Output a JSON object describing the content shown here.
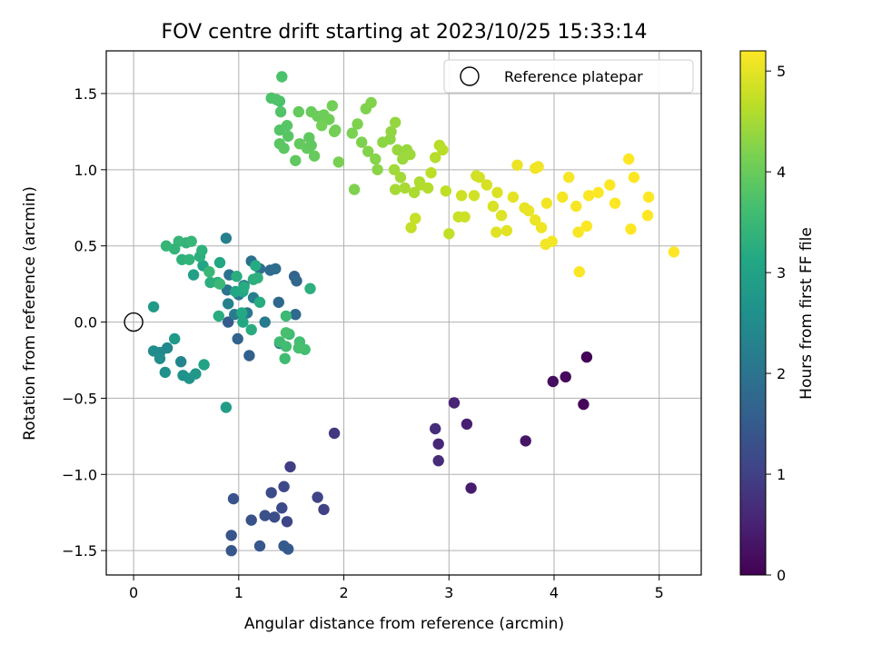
{
  "chart_data": {
    "type": "scatter",
    "title": "FOV centre drift starting at 2023/10/25 15:33:14",
    "xlabel": "Angular distance from reference (arcmin)",
    "ylabel": "Rotation from reference (arcmin)",
    "xlim": [
      -0.26,
      5.4
    ],
    "ylim": [
      -1.66,
      1.78
    ],
    "xticks": [
      0,
      1,
      2,
      3,
      4,
      5
    ],
    "xtick_labels": [
      "0",
      "1",
      "2",
      "3",
      "4",
      "5"
    ],
    "yticks": [
      -1.5,
      -1.0,
      -0.5,
      0.0,
      0.5,
      1.0,
      1.5
    ],
    "ytick_labels": [
      "−1.5",
      "−1.0",
      "−0.5",
      "0.0",
      "0.5",
      "1.0",
      "1.5"
    ],
    "grid": true,
    "legend": {
      "position": "top-right",
      "entries": [
        "Reference platepar"
      ]
    },
    "reference": {
      "x": 0,
      "y": 0,
      "label": "Reference platepar"
    },
    "colorbar": {
      "label": "Hours from first FF file",
      "range": [
        0,
        5.2
      ],
      "ticks": [
        0,
        1,
        2,
        3,
        4,
        5
      ],
      "tick_labels": [
        "0",
        "1",
        "2",
        "3",
        "4",
        "5"
      ],
      "colormap": "viridis"
    },
    "points": [
      [
        4.31,
        -0.23,
        0.05
      ],
      [
        4.28,
        -0.54,
        0.08
      ],
      [
        4.11,
        -0.36,
        0.12
      ],
      [
        3.99,
        -0.39,
        0.18
      ],
      [
        3.73,
        -0.78,
        0.3
      ],
      [
        3.21,
        -1.09,
        0.42
      ],
      [
        3.17,
        -0.67,
        0.48
      ],
      [
        3.05,
        -0.53,
        0.55
      ],
      [
        2.9,
        -0.8,
        0.6
      ],
      [
        2.9,
        -0.91,
        0.66
      ],
      [
        2.87,
        -0.7,
        0.72
      ],
      [
        1.91,
        -0.73,
        0.85
      ],
      [
        1.49,
        -0.95,
        0.95
      ],
      [
        1.81,
        -1.23,
        1.0
      ],
      [
        1.75,
        -1.15,
        1.05
      ],
      [
        1.46,
        -1.31,
        1.1
      ],
      [
        1.43,
        -1.08,
        1.15
      ],
      [
        1.41,
        -1.22,
        1.18
      ],
      [
        1.31,
        -1.12,
        1.22
      ],
      [
        1.34,
        -1.28,
        1.25
      ],
      [
        1.25,
        -1.27,
        1.3
      ],
      [
        1.12,
        -1.3,
        1.33
      ],
      [
        0.95,
        -1.16,
        1.36
      ],
      [
        0.93,
        -1.4,
        1.4
      ],
      [
        0.93,
        -1.5,
        1.42
      ],
      [
        1.2,
        -1.47,
        1.45
      ],
      [
        1.43,
        -1.47,
        1.48
      ],
      [
        1.47,
        -1.49,
        1.5
      ],
      [
        0.9,
        0.0,
        1.55
      ],
      [
        1.1,
        -0.22,
        1.6
      ],
      [
        0.99,
        -0.11,
        1.65
      ],
      [
        1.53,
        0.3,
        1.7
      ],
      [
        1.55,
        0.27,
        1.72
      ],
      [
        1.38,
        0.13,
        1.75
      ],
      [
        1.54,
        0.05,
        1.78
      ],
      [
        1.39,
        -0.14,
        1.8
      ],
      [
        1.3,
        0.34,
        1.83
      ],
      [
        1.35,
        0.35,
        1.86
      ],
      [
        1.2,
        0.35,
        1.9
      ],
      [
        1.12,
        0.4,
        1.93
      ],
      [
        0.91,
        0.31,
        1.96
      ],
      [
        0.89,
        0.21,
        2.0
      ],
      [
        1.05,
        0.24,
        2.03
      ],
      [
        1.0,
        0.18,
        2.06
      ],
      [
        1.08,
        0.06,
        2.1
      ],
      [
        1.25,
        0.0,
        2.13
      ],
      [
        0.96,
        0.05,
        2.16
      ],
      [
        1.14,
        0.16,
        2.2
      ],
      [
        0.88,
        0.55,
        2.25
      ],
      [
        0.9,
        0.12,
        2.3
      ],
      [
        0.45,
        -0.26,
        2.35
      ],
      [
        0.32,
        -0.17,
        2.4
      ],
      [
        0.25,
        -0.2,
        2.45
      ],
      [
        0.19,
        -0.19,
        2.5
      ],
      [
        0.25,
        -0.24,
        2.55
      ],
      [
        0.3,
        -0.33,
        2.6
      ],
      [
        0.47,
        -0.35,
        2.65
      ],
      [
        0.53,
        -0.37,
        2.7
      ],
      [
        0.59,
        -0.34,
        2.75
      ],
      [
        0.39,
        -0.11,
        2.8
      ],
      [
        0.19,
        0.1,
        2.85
      ],
      [
        0.88,
        -0.56,
        2.9
      ],
      [
        0.57,
        0.31,
        2.95
      ],
      [
        0.67,
        -0.28,
        3.0
      ],
      [
        0.66,
        0.37,
        3.05
      ],
      [
        0.82,
        0.39,
        3.1
      ],
      [
        0.97,
        0.2,
        3.1
      ],
      [
        1.04,
        0.0,
        3.12
      ],
      [
        1.04,
        0.2,
        3.14
      ],
      [
        1.14,
        0.28,
        3.16
      ],
      [
        1.16,
        0.37,
        3.18
      ],
      [
        1.05,
        0.23,
        3.2
      ],
      [
        1.12,
        -0.05,
        3.22
      ],
      [
        0.81,
        0.04,
        3.24
      ],
      [
        0.8,
        0.26,
        3.26
      ],
      [
        0.73,
        0.26,
        3.28
      ],
      [
        0.63,
        0.43,
        3.3
      ],
      [
        0.65,
        0.47,
        3.32
      ],
      [
        0.46,
        0.41,
        3.34
      ],
      [
        0.5,
        0.52,
        3.36
      ],
      [
        0.53,
        0.41,
        3.38
      ],
      [
        0.39,
        0.48,
        3.4
      ],
      [
        0.31,
        0.5,
        3.42
      ],
      [
        0.43,
        0.53,
        3.44
      ],
      [
        0.55,
        0.53,
        3.46
      ],
      [
        0.72,
        0.33,
        3.48
      ],
      [
        0.82,
        0.25,
        3.5
      ],
      [
        1.45,
        0.04,
        3.52
      ],
      [
        1.48,
        -0.08,
        3.54
      ],
      [
        1.39,
        -0.13,
        3.56
      ],
      [
        1.44,
        -0.24,
        3.58
      ],
      [
        1.45,
        -0.16,
        3.6
      ],
      [
        1.58,
        -0.13,
        3.62
      ],
      [
        1.63,
        -0.18,
        3.64
      ],
      [
        1.57,
        -0.17,
        3.66
      ],
      [
        1.45,
        -0.07,
        3.68
      ],
      [
        1.39,
        1.45,
        3.7
      ],
      [
        1.41,
        1.61,
        3.72
      ],
      [
        1.31,
        1.47,
        3.74
      ],
      [
        1.36,
        1.46,
        3.76
      ],
      [
        1.4,
        1.38,
        3.78
      ],
      [
        1.39,
        1.26,
        3.8
      ],
      [
        1.46,
        1.29,
        3.82
      ],
      [
        1.47,
        1.22,
        3.84
      ],
      [
        1.39,
        1.17,
        3.86
      ],
      [
        1.43,
        1.14,
        3.88
      ],
      [
        1.54,
        1.06,
        3.9
      ],
      [
        1.67,
        1.21,
        3.92
      ],
      [
        1.58,
        1.17,
        3.94
      ],
      [
        1.65,
        1.14,
        3.96
      ],
      [
        1.72,
        1.09,
        3.98
      ],
      [
        1.69,
        1.38,
        4.0
      ],
      [
        1.75,
        1.35,
        4.02
      ],
      [
        1.81,
        1.36,
        4.04
      ],
      [
        1.86,
        1.33,
        4.06
      ],
      [
        1.89,
        1.42,
        4.08
      ],
      [
        1.79,
        1.29,
        4.1
      ],
      [
        1.91,
        1.25,
        4.12
      ],
      [
        1.95,
        1.05,
        4.14
      ],
      [
        2.08,
        1.24,
        4.16
      ],
      [
        2.17,
        1.18,
        4.18
      ],
      [
        2.21,
        1.4,
        4.2
      ],
      [
        2.26,
        1.44,
        4.22
      ],
      [
        2.23,
        1.12,
        4.24
      ],
      [
        2.3,
        1.07,
        4.26
      ],
      [
        2.32,
        1.0,
        4.28
      ],
      [
        2.37,
        1.18,
        4.3
      ],
      [
        2.44,
        1.2,
        4.32
      ],
      [
        2.45,
        1.25,
        4.34
      ],
      [
        2.49,
        1.31,
        4.36
      ],
      [
        2.51,
        1.13,
        4.38
      ],
      [
        2.6,
        1.13,
        4.4
      ],
      [
        2.56,
        1.07,
        4.42
      ],
      [
        2.63,
        1.1,
        4.44
      ],
      [
        2.48,
        1.0,
        4.46
      ],
      [
        2.54,
        0.95,
        4.48
      ],
      [
        2.49,
        0.87,
        4.5
      ],
      [
        2.58,
        0.88,
        4.52
      ],
      [
        2.67,
        0.85,
        4.54
      ],
      [
        2.72,
        0.92,
        4.56
      ],
      [
        2.73,
        0.9,
        4.58
      ],
      [
        2.8,
        0.88,
        4.6
      ],
      [
        2.87,
        1.08,
        4.62
      ],
      [
        2.91,
        1.16,
        4.64
      ],
      [
        2.94,
        1.13,
        4.66
      ],
      [
        2.83,
        0.98,
        4.68
      ],
      [
        2.97,
        0.86,
        4.7
      ],
      [
        3.0,
        0.58,
        4.72
      ],
      [
        2.64,
        0.62,
        4.74
      ],
      [
        2.68,
        0.68,
        4.76
      ],
      [
        3.09,
        0.69,
        4.78
      ],
      [
        3.15,
        0.69,
        4.8
      ],
      [
        3.12,
        0.83,
        4.82
      ],
      [
        3.24,
        0.83,
        4.84
      ],
      [
        3.29,
        0.95,
        4.86
      ],
      [
        3.36,
        0.9,
        4.88
      ],
      [
        3.42,
        0.76,
        4.9
      ],
      [
        3.46,
        0.85,
        4.92
      ],
      [
        3.5,
        0.7,
        4.94
      ],
      [
        3.45,
        0.59,
        4.96
      ],
      [
        3.55,
        0.6,
        4.98
      ],
      [
        3.61,
        0.82,
        5.0
      ],
      [
        3.72,
        0.75,
        5.02
      ],
      [
        3.76,
        0.73,
        5.04
      ],
      [
        3.82,
        0.67,
        5.06
      ],
      [
        3.88,
        0.62,
        5.08
      ],
      [
        3.92,
        0.51,
        5.1
      ],
      [
        3.93,
        0.78,
        5.11
      ],
      [
        3.98,
        0.53,
        5.12
      ],
      [
        4.08,
        0.82,
        5.13
      ],
      [
        4.14,
        0.95,
        5.14
      ],
      [
        4.21,
        0.76,
        5.15
      ],
      [
        4.23,
        0.59,
        5.16
      ],
      [
        4.24,
        0.33,
        5.17
      ],
      [
        4.31,
        0.63,
        5.18
      ],
      [
        4.33,
        0.83,
        5.18
      ],
      [
        4.42,
        0.85,
        5.19
      ],
      [
        4.53,
        0.9,
        5.19
      ],
      [
        4.58,
        0.78,
        5.2
      ],
      [
        4.71,
        1.07,
        5.2
      ],
      [
        4.76,
        0.95,
        5.2
      ],
      [
        4.73,
        0.61,
        5.2
      ],
      [
        4.9,
        0.82,
        5.2
      ],
      [
        4.89,
        0.7,
        5.2
      ],
      [
        5.14,
        0.46,
        5.2
      ],
      [
        3.82,
        1.01,
        5.1
      ],
      [
        3.85,
        1.02,
        5.1
      ],
      [
        3.65,
        1.03,
        5.05
      ],
      [
        3.26,
        0.96,
        4.85
      ],
      [
        2.13,
        1.3,
        4.18
      ],
      [
        2.1,
        0.87,
        4.2
      ],
      [
        1.92,
        1.26,
        4.1
      ],
      [
        1.57,
        1.38,
        3.95
      ],
      [
        1.69,
        1.16,
        3.92
      ],
      [
        1.68,
        0.22,
        3.3
      ],
      [
        1.18,
        0.29,
        3.3
      ],
      [
        0.98,
        0.3,
        3.25
      ],
      [
        1.14,
        0.28,
        3.3
      ],
      [
        1.03,
        0.06,
        3.15
      ],
      [
        1.2,
        0.13,
        3.2
      ]
    ]
  }
}
